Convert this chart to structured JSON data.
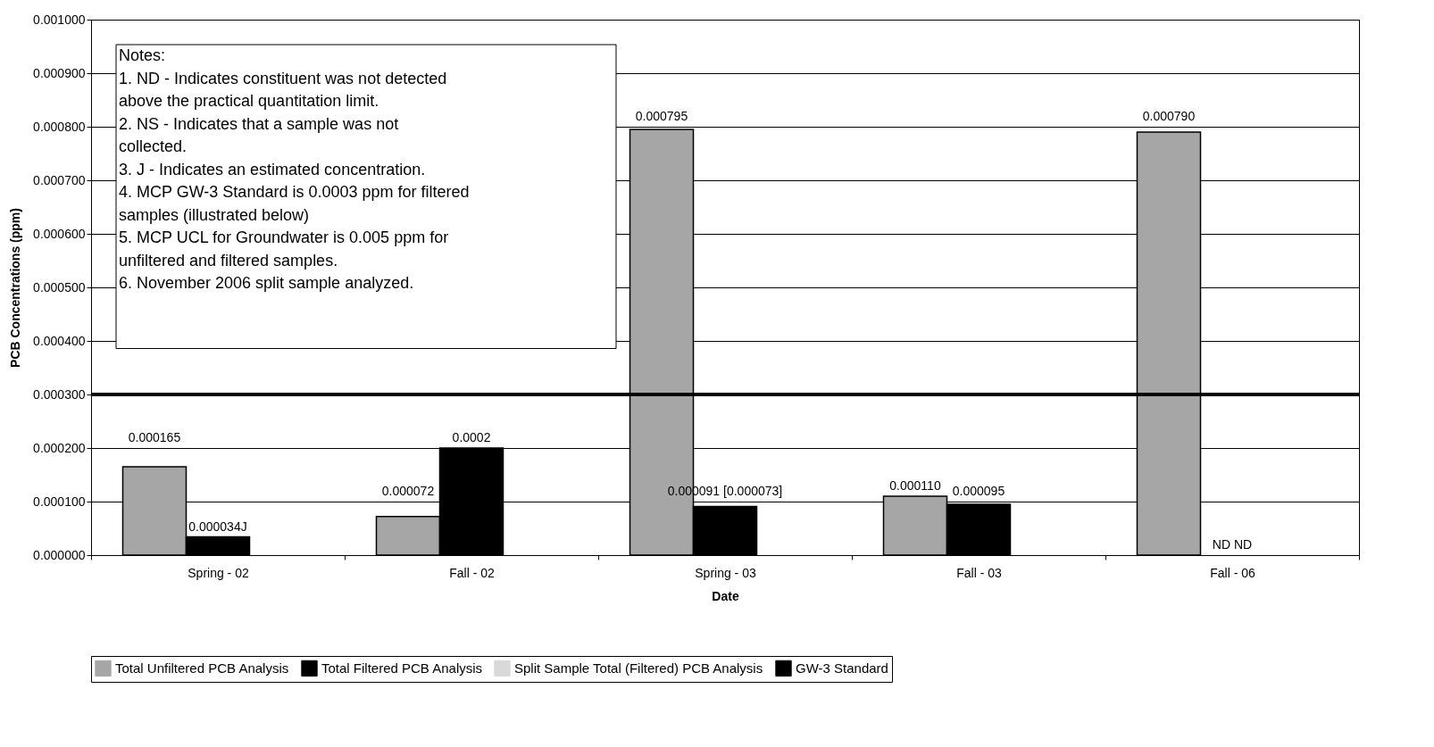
{
  "chart_data": {
    "type": "bar",
    "xlabel": "Date",
    "ylabel": "PCB Concentrations (ppm)",
    "categories": [
      "Spring - 02",
      "Fall - 02",
      "Spring - 03",
      "Fall - 03",
      "Fall - 06"
    ],
    "series": [
      {
        "name": "Total Unfiltered PCB Analysis",
        "color": "#a6a6a6",
        "values": [
          0.000165,
          7.2e-05,
          0.000795,
          0.00011,
          0.00079
        ],
        "value_labels": [
          "0.000165",
          "0.000072",
          "0.000795",
          "0.000110",
          "0.000790"
        ]
      },
      {
        "name": "Total Filtered PCB Analysis",
        "color": "#000000",
        "values": [
          3.4e-05,
          0.0002,
          9.1e-05,
          9.5e-05,
          null
        ],
        "value_labels": [
          "0.000034J",
          "0.0002",
          "0.000091 [0.000073]",
          "0.000095",
          "ND ND"
        ]
      },
      {
        "name": "Split Sample Total (Filtered) PCB Analysis",
        "color": "#d9d9d9",
        "values": [
          null,
          null,
          null,
          null,
          null
        ]
      }
    ],
    "ylim": [
      0,
      0.001
    ],
    "yticks": [
      {
        "value": 0,
        "label": "0.000000"
      },
      {
        "value": 0.0001,
        "label": "0.000100"
      },
      {
        "value": 0.0002,
        "label": "0.000200"
      },
      {
        "value": 0.0003,
        "label": "0.000300"
      },
      {
        "value": 0.0004,
        "label": "0.000400"
      },
      {
        "value": 0.0005,
        "label": "0.000500"
      },
      {
        "value": 0.0006,
        "label": "0.000600"
      },
      {
        "value": 0.0007,
        "label": "0.000700"
      },
      {
        "value": 0.0008,
        "label": "0.000800"
      },
      {
        "value": 0.0009,
        "label": "0.000900"
      },
      {
        "value": 0.001,
        "label": "0.001000"
      }
    ],
    "ref_lines": [
      {
        "axis": "y",
        "value": 0.0003,
        "label": "GW-3 Standard",
        "color": "#000000"
      }
    ],
    "annotations": [
      "Notes:",
      "1.  ND - Indicates constituent was not detected above the practical quantitation limit.",
      "2.  NS - Indicates that a sample was not collected.",
      "3.  J - Indicates an estimated concentration.",
      "4.  MCP GW-3 Standard is 0.0003 ppm for filtered samples (illustrated below)",
      "5.  MCP UCL for Groundwater is 0.005 ppm for unfiltered and filtered samples.",
      "6.  November 2006 split sample analyzed."
    ],
    "grid": "y",
    "legend": "bottom"
  }
}
